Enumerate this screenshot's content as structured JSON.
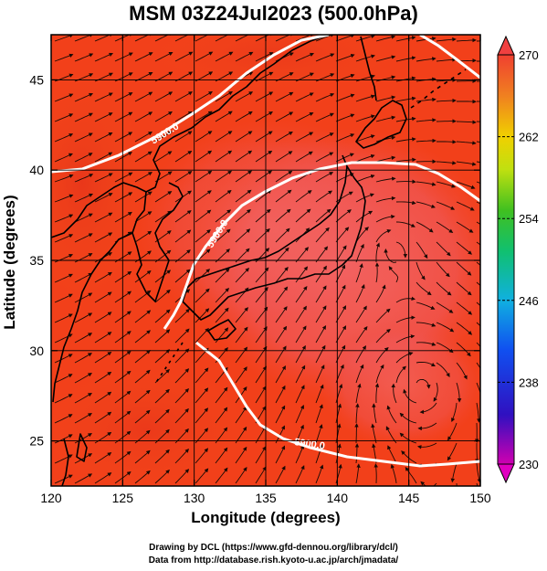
{
  "title": "MSM 03Z24Jul2023 (500.0hPa)",
  "x_axis": {
    "label": "Longitude (degrees)",
    "range": [
      120,
      150
    ],
    "ticks": [
      120,
      125,
      130,
      135,
      140,
      145,
      150
    ]
  },
  "y_axis": {
    "label": "Latitude  (degrees)",
    "range": [
      22.5,
      47.5
    ],
    "ticks": [
      25,
      30,
      35,
      40,
      45
    ]
  },
  "colorbar": {
    "range": [
      230,
      270
    ],
    "tick_labels": [
      "270",
      "262",
      "254",
      "246",
      "238",
      "230"
    ]
  },
  "contour_label": "5900.0",
  "credits": [
    "Drawing by DCL (https://www.gfd-dennou.org/library/dcl/)",
    "Data from http://database.rish.kyoto-u.ac.jp/arch/jmadata/"
  ],
  "colors": {
    "field": "#f2401a",
    "warm_core": "#f06060",
    "contour": "#ffffff",
    "streamline": "#1a0a05",
    "coastline": "#000000"
  }
}
